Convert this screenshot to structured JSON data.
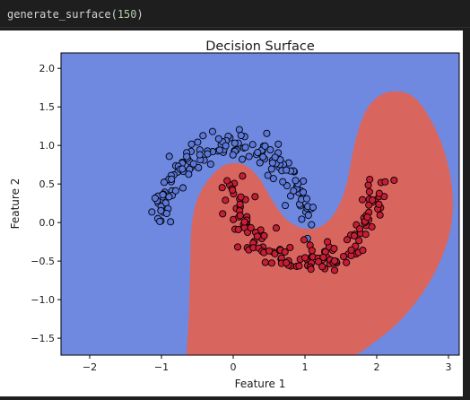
{
  "cell": {
    "code_fn": "generate_surface",
    "code_open": "(",
    "code_arg": "150",
    "code_close": ")"
  },
  "colors": {
    "class0_region": "#7089e0",
    "class1_region": "#d8665e",
    "class0_point": "#5a77d9",
    "class1_point": "#c81e35",
    "point_edge": "#000000"
  },
  "chart_data": {
    "type": "scatter",
    "title": "Decision Surface",
    "xlabel": "Feature 1",
    "ylabel": "Feature 2",
    "xlim": [
      -2.4,
      3.15
    ],
    "ylim": [
      -1.72,
      2.2
    ],
    "xticks": [
      -2,
      -1,
      0,
      1,
      2,
      3
    ],
    "xtick_labels": [
      "−2",
      "−1",
      "0",
      "1",
      "2",
      "3"
    ],
    "yticks": [
      -1.5,
      -1.0,
      -0.5,
      0.0,
      0.5,
      1.0,
      1.5,
      2.0
    ],
    "ytick_labels": [
      "−1.5",
      "−1.0",
      "−0.5",
      "0.0",
      "0.5",
      "1.0",
      "1.5",
      "2.0"
    ],
    "grid": false,
    "legend": "none",
    "decision_regions": {
      "background_class": 0,
      "class1_boundary": [
        [
          -0.65,
          -1.72
        ],
        [
          -0.62,
          -1.2
        ],
        [
          -0.6,
          -0.6
        ],
        [
          -0.58,
          -0.05
        ],
        [
          -0.5,
          0.3
        ],
        [
          -0.35,
          0.55
        ],
        [
          -0.15,
          0.73
        ],
        [
          0.05,
          0.77
        ],
        [
          0.22,
          0.71
        ],
        [
          0.38,
          0.55
        ],
        [
          0.55,
          0.28
        ],
        [
          0.72,
          0.06
        ],
        [
          0.92,
          -0.06
        ],
        [
          1.12,
          -0.08
        ],
        [
          1.3,
          0.0
        ],
        [
          1.45,
          0.18
        ],
        [
          1.58,
          0.5
        ],
        [
          1.7,
          1.05
        ],
        [
          1.85,
          1.45
        ],
        [
          2.05,
          1.65
        ],
        [
          2.3,
          1.7
        ],
        [
          2.55,
          1.6
        ],
        [
          2.8,
          1.25
        ],
        [
          2.98,
          0.8
        ],
        [
          3.06,
          0.3
        ],
        [
          3.0,
          -0.2
        ],
        [
          2.75,
          -0.75
        ],
        [
          2.35,
          -1.25
        ],
        [
          1.9,
          -1.6
        ],
        [
          1.7,
          -1.72
        ]
      ]
    },
    "series": [
      {
        "class": 0,
        "shape": "upper-moon",
        "center": [
          0.0,
          0.0
        ],
        "radius": 1.0,
        "count": 150,
        "noise": 0.1,
        "x_range": [
          -1.12,
          1.05
        ],
        "y_range": [
          -0.06,
          1.22
        ]
      },
      {
        "class": 1,
        "shape": "lower-moon",
        "center": [
          1.0,
          0.5
        ],
        "radius": 1.0,
        "count": 150,
        "noise": 0.1,
        "x_range": [
          -0.12,
          2.12
        ],
        "y_range": [
          -0.72,
          0.72
        ]
      }
    ]
  }
}
